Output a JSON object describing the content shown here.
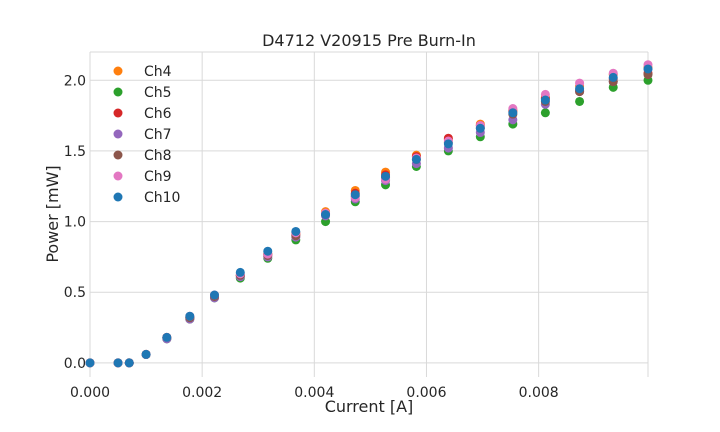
{
  "chart_data": {
    "type": "scatter",
    "title": "D4712 V20915 Pre Burn-In",
    "xlabel": "Current [A]",
    "ylabel": "Power [mW]",
    "xlim": [
      0.0,
      0.00995
    ],
    "ylim": [
      -0.1,
      2.2
    ],
    "grid": true,
    "legend_position": "top-left",
    "xticks": [
      0.0,
      0.002,
      0.004,
      0.006,
      0.008
    ],
    "xtick_labels": [
      "0.000",
      "0.002",
      "0.004",
      "0.006",
      "0.008"
    ],
    "yticks": [
      0.0,
      0.5,
      1.0,
      1.5,
      2.0
    ],
    "ytick_labels": [
      "0.0",
      "0.5",
      "1.0",
      "1.5",
      "2.0"
    ],
    "x": [
      0.0,
      0.0005,
      0.0007,
      0.001,
      0.00137,
      0.00178,
      0.00222,
      0.00268,
      0.00317,
      0.00367,
      0.0042,
      0.00473,
      0.00527,
      0.00582,
      0.00639,
      0.00696,
      0.00754,
      0.00812,
      0.00873,
      0.00933,
      0.00995
    ],
    "series": [
      {
        "name": "Ch4",
        "color": "#ff7f0e",
        "values": [
          0.0,
          0.0,
          0.0,
          0.06,
          0.18,
          0.32,
          0.47,
          0.62,
          0.77,
          0.92,
          1.07,
          1.22,
          1.35,
          1.47,
          1.58,
          1.69,
          1.79,
          1.88,
          1.96,
          2.04,
          2.09
        ]
      },
      {
        "name": "Ch5",
        "color": "#2ca02c",
        "values": [
          0.0,
          0.0,
          0.0,
          0.06,
          0.17,
          0.31,
          0.46,
          0.6,
          0.74,
          0.87,
          1.0,
          1.14,
          1.26,
          1.39,
          1.5,
          1.6,
          1.69,
          1.77,
          1.85,
          1.95,
          2.0
        ]
      },
      {
        "name": "Ch6",
        "color": "#d62728",
        "values": [
          0.0,
          0.0,
          0.0,
          0.06,
          0.18,
          0.32,
          0.47,
          0.62,
          0.77,
          0.91,
          1.05,
          1.2,
          1.33,
          1.46,
          1.59,
          1.68,
          1.78,
          1.87,
          1.93,
          2.01,
          2.05
        ]
      },
      {
        "name": "Ch7",
        "color": "#9467bd",
        "values": [
          0.0,
          0.0,
          0.0,
          0.06,
          0.17,
          0.31,
          0.46,
          0.61,
          0.75,
          0.89,
          1.04,
          1.16,
          1.29,
          1.41,
          1.52,
          1.63,
          1.72,
          1.83,
          1.92,
          1.99,
          2.08
        ]
      },
      {
        "name": "Ch8",
        "color": "#8c564b",
        "values": [
          0.0,
          0.0,
          0.0,
          0.06,
          0.18,
          0.32,
          0.47,
          0.62,
          0.76,
          0.9,
          1.05,
          1.18,
          1.31,
          1.44,
          1.56,
          1.66,
          1.76,
          1.85,
          1.92,
          1.99,
          2.04
        ]
      },
      {
        "name": "Ch9",
        "color": "#e377c2",
        "values": [
          0.0,
          0.0,
          0.0,
          0.06,
          0.18,
          0.33,
          0.48,
          0.63,
          0.77,
          0.92,
          1.06,
          1.17,
          1.3,
          1.45,
          1.57,
          1.68,
          1.8,
          1.9,
          1.98,
          2.05,
          2.11
        ]
      },
      {
        "name": "Ch10",
        "color": "#1f77b4",
        "values": [
          0.0,
          0.0,
          0.0,
          0.06,
          0.18,
          0.33,
          0.48,
          0.64,
          0.79,
          0.93,
          1.05,
          1.19,
          1.32,
          1.44,
          1.55,
          1.66,
          1.77,
          1.86,
          1.94,
          2.02,
          2.08
        ]
      }
    ]
  }
}
